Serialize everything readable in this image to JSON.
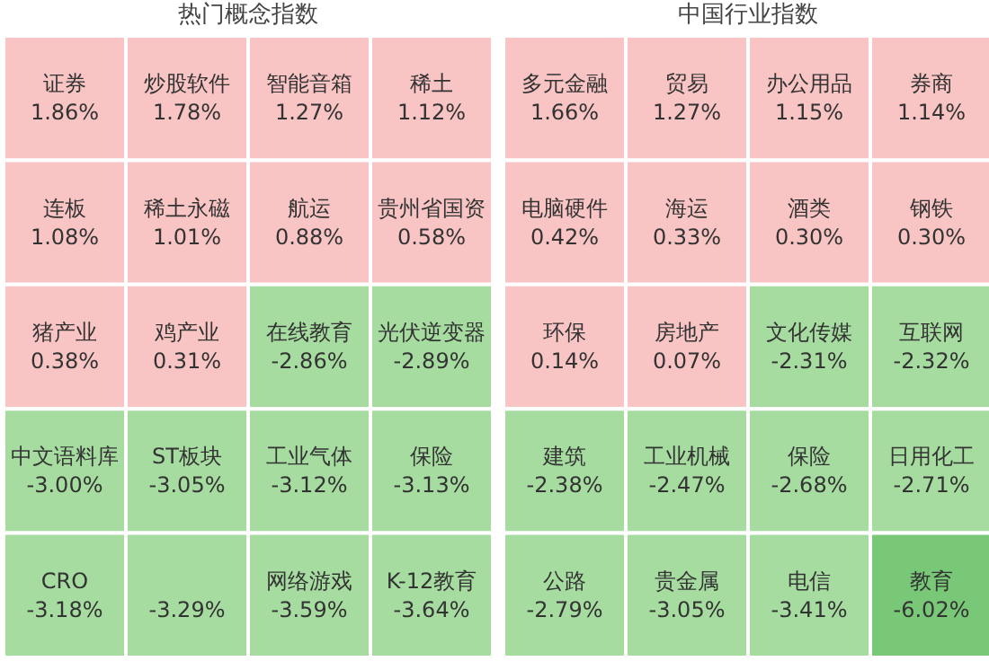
{
  "chart_data": [
    {
      "type": "other",
      "title": "热门概念指数",
      "categories": [
        "证券",
        "炒股软件",
        "智能音箱",
        "稀土",
        "连板",
        "稀土永磁",
        "航运",
        "贵州省国资",
        "猪产业",
        "鸡产业",
        "在线教育",
        "光伏逆变器",
        "中文语料库",
        "ST板块",
        "工业气体",
        "保险",
        "CRO",
        null,
        "网络游戏",
        "K-12教育"
      ],
      "values": [
        1.86,
        1.78,
        1.27,
        1.12,
        1.08,
        1.01,
        0.88,
        0.58,
        0.38,
        0.31,
        -2.86,
        -2.89,
        -3.0,
        -3.05,
        -3.12,
        -3.13,
        -3.18,
        -3.29,
        -3.59,
        -3.64
      ],
      "value_labels": [
        "1.86%",
        "1.78%",
        "1.27%",
        "1.12%",
        "1.08%",
        "1.01%",
        "0.88%",
        "0.58%",
        "0.38%",
        "0.31%",
        "-2.86%",
        "-2.89%",
        "-3.00%",
        "-3.05%",
        "-3.12%",
        "-3.13%",
        "-3.18%",
        "-3.29%",
        "-3.59%",
        "-3.64%"
      ]
    },
    {
      "type": "other",
      "title": "中国行业指数",
      "categories": [
        "多元金融",
        "贸易",
        "办公用品",
        "券商",
        "电脑硬件",
        "海运",
        "酒类",
        "钢铁",
        "环保",
        "房地产",
        "文化传媒",
        "互联网",
        "建筑",
        "工业机械",
        "保险",
        "日用化工",
        "公路",
        "贵金属",
        "电信",
        "教育"
      ],
      "values": [
        1.66,
        1.27,
        1.15,
        1.14,
        0.42,
        0.33,
        0.3,
        0.3,
        0.14,
        0.07,
        -2.31,
        -2.32,
        -2.38,
        -2.47,
        -2.68,
        -2.71,
        -2.79,
        -3.05,
        -3.41,
        -6.02
      ],
      "value_labels": [
        "1.66%",
        "1.27%",
        "1.15%",
        "1.14%",
        "0.42%",
        "0.33%",
        "0.30%",
        "0.30%",
        "0.14%",
        "0.07%",
        "-2.31%",
        "-2.32%",
        "-2.38%",
        "-2.47%",
        "-2.68%",
        "-2.71%",
        "-2.79%",
        "-3.05%",
        "-3.41%",
        "-6.02%"
      ]
    }
  ]
}
